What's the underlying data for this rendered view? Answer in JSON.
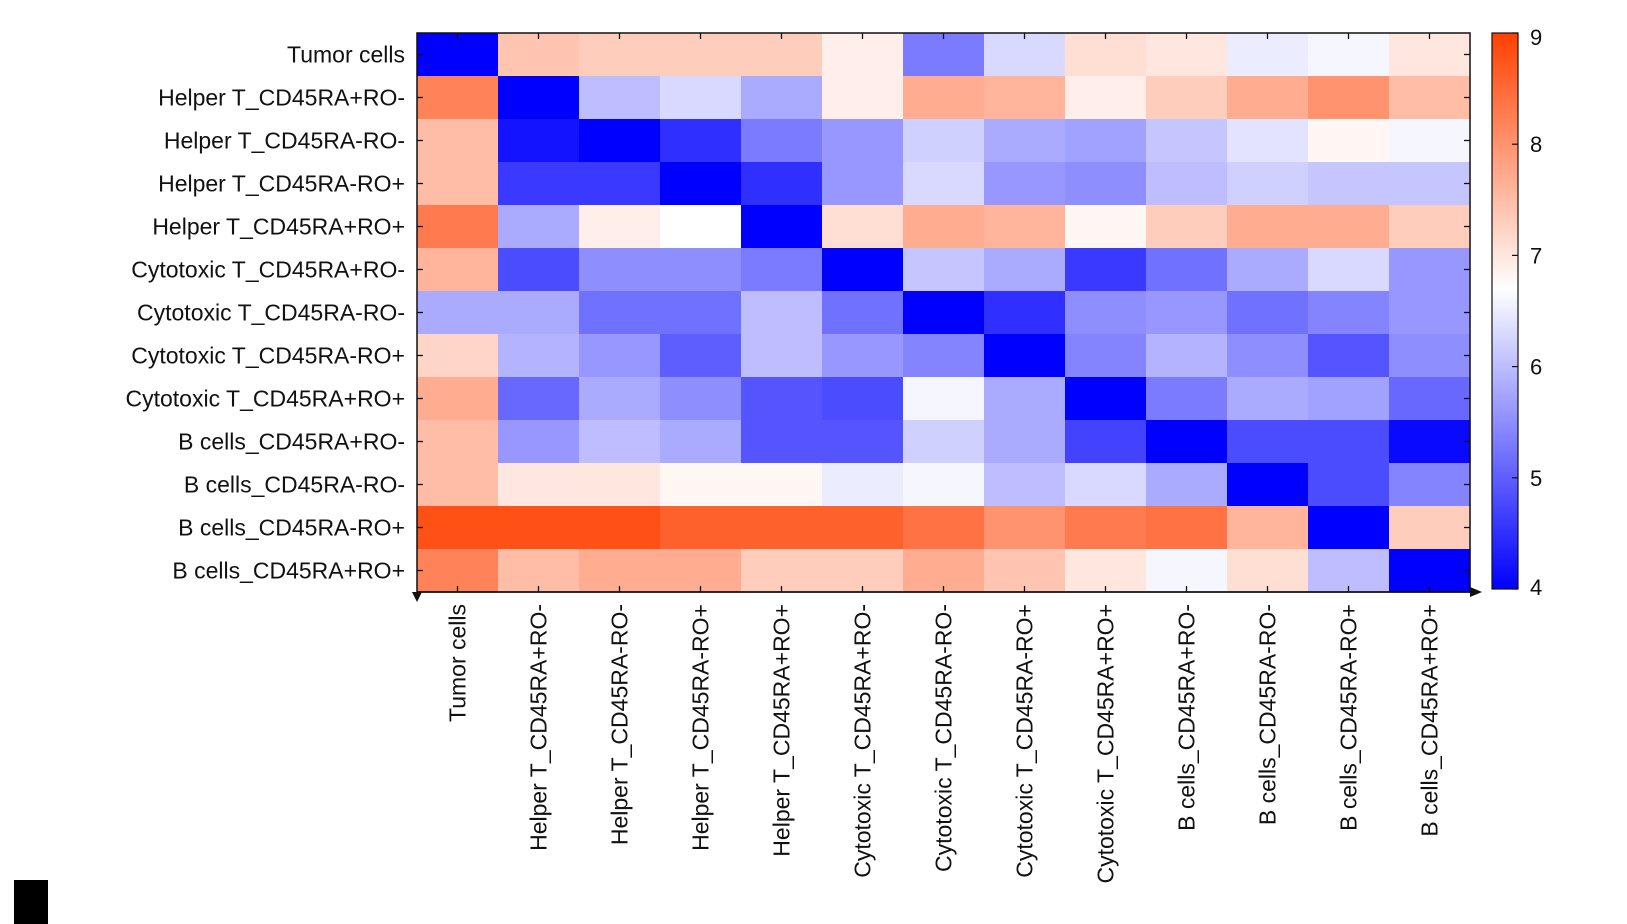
{
  "chart_data": {
    "type": "heatmap",
    "title": "",
    "xlabel": "",
    "ylabel": "",
    "row_labels": [
      "Tumor cells",
      "Helper T_CD45RA+RO-",
      "Helper T_CD45RA-RO-",
      "Helper T_CD45RA-RO+",
      "Helper T_CD45RA+RO+",
      "Cytotoxic T_CD45RA+RO-",
      "Cytotoxic T_CD45RA-RO-",
      "Cytotoxic T_CD45RA-RO+",
      "Cytotoxic T_CD45RA+RO+",
      "B cells_CD45RA+RO-",
      "B cells_CD45RA-RO-",
      "B cells_CD45RA-RO+",
      "B cells_CD45RA+RO+"
    ],
    "col_labels": [
      "Tumor cells",
      "Helper T_CD45RA+RO-",
      "Helper T_CD45RA-RO-",
      "Helper T_CD45RA-RO+",
      "Helper T_CD45RA+RO+",
      "Cytotoxic T_CD45RA+RO-",
      "Cytotoxic T_CD45RA-RO-",
      "Cytotoxic T_CD45RA-RO+",
      "Cytotoxic T_CD45RA+RO+",
      "B cells_CD45RA+RO-",
      "B cells_CD45RA-RO-",
      "B cells_CD45RA-RO+",
      "B cells_CD45RA+RO+"
    ],
    "values": [
      [
        4.0,
        7.4,
        7.3,
        7.3,
        7.3,
        6.9,
        5.3,
        6.3,
        7.1,
        7.0,
        6.5,
        6.6,
        7.0
      ],
      [
        8.2,
        4.0,
        6.0,
        6.3,
        5.8,
        6.9,
        7.7,
        7.6,
        6.9,
        7.3,
        7.7,
        8.0,
        7.5
      ],
      [
        7.5,
        4.2,
        4.0,
        4.5,
        5.3,
        5.6,
        6.2,
        5.8,
        5.7,
        6.1,
        6.4,
        6.8,
        6.6
      ],
      [
        7.5,
        4.6,
        4.6,
        4.0,
        4.5,
        5.6,
        6.3,
        5.6,
        5.5,
        6.0,
        6.2,
        6.1,
        6.1
      ],
      [
        8.3,
        5.8,
        6.9,
        6.7,
        4.0,
        7.1,
        7.7,
        7.6,
        6.8,
        7.3,
        7.7,
        7.7,
        7.3
      ],
      [
        7.6,
        4.8,
        5.5,
        5.5,
        5.3,
        4.0,
        6.1,
        5.8,
        4.6,
        5.2,
        5.8,
        6.3,
        5.6
      ],
      [
        5.8,
        5.8,
        5.2,
        5.2,
        6.0,
        5.2,
        4.0,
        4.5,
        5.5,
        5.6,
        5.2,
        5.4,
        5.6
      ],
      [
        7.2,
        5.9,
        5.6,
        5.0,
        6.0,
        5.6,
        5.4,
        4.0,
        5.4,
        5.9,
        5.5,
        4.9,
        5.5
      ],
      [
        7.7,
        5.1,
        5.8,
        5.5,
        4.9,
        4.8,
        6.6,
        5.8,
        4.0,
        5.3,
        5.8,
        5.7,
        5.1
      ],
      [
        7.5,
        5.6,
        6.0,
        5.8,
        4.9,
        4.9,
        6.2,
        5.8,
        4.7,
        4.0,
        4.8,
        4.8,
        4.1
      ],
      [
        7.5,
        7.0,
        7.0,
        6.8,
        6.8,
        6.5,
        6.6,
        6.0,
        6.3,
        5.8,
        4.0,
        4.8,
        5.4
      ],
      [
        8.8,
        8.8,
        8.8,
        8.6,
        8.6,
        8.6,
        8.4,
        8.0,
        8.3,
        8.4,
        7.6,
        4.0,
        7.3
      ],
      [
        8.2,
        7.5,
        7.7,
        7.7,
        7.3,
        7.3,
        7.7,
        7.4,
        7.0,
        6.6,
        7.1,
        6.0,
        4.0
      ]
    ],
    "colorbar": {
      "min": 4,
      "max": 9,
      "ticks": [
        "4",
        "5",
        "6",
        "7",
        "8",
        "9"
      ],
      "colors": {
        "low": "#0000ff",
        "mid": "#ffffff",
        "high": "#ff4000"
      },
      "position": "right"
    },
    "grid": false,
    "legend": "colorbar-right"
  }
}
